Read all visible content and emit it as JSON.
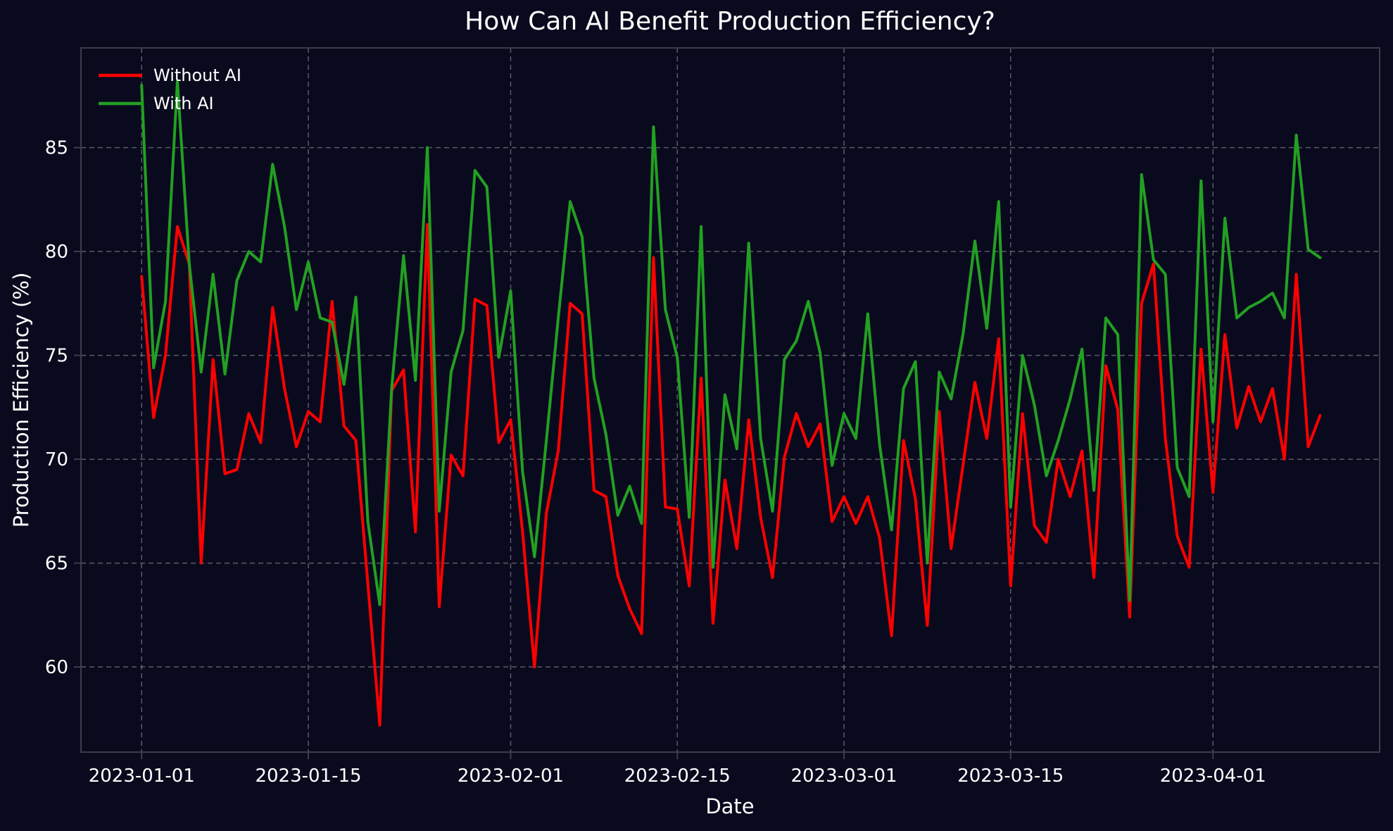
{
  "chart_data": {
    "type": "line",
    "title": "How Can AI Benefit Production Efficiency?",
    "xlabel": "Date",
    "ylabel": "Production Efficiency (%)",
    "background_color": "#0a0a1e",
    "text_color": "#ffffff",
    "grid": true,
    "grid_color": "#8f8f98",
    "spine_color": "#3d3d48",
    "legend_position": "upper-left",
    "x_start": "2023-01-01",
    "x_step": "1 day",
    "n_points": 100,
    "xlim_days": [
      -5.1,
      104.0
    ],
    "ylim": [
      55.9,
      89.8
    ],
    "yticks": [
      60,
      65,
      70,
      75,
      80,
      85
    ],
    "xticks": [
      {
        "day": 0,
        "label": "2023-01-01"
      },
      {
        "day": 14,
        "label": "2023-01-15"
      },
      {
        "day": 31,
        "label": "2023-02-01"
      },
      {
        "day": 45,
        "label": "2023-02-15"
      },
      {
        "day": 59,
        "label": "2023-03-01"
      },
      {
        "day": 73,
        "label": "2023-03-15"
      },
      {
        "day": 90,
        "label": "2023-04-01"
      }
    ],
    "series": [
      {
        "name": "Without AI",
        "color": "#ff0000",
        "values": [
          78.8,
          72.0,
          75.0,
          81.2,
          79.4,
          65.0,
          74.8,
          69.3,
          69.5,
          72.2,
          70.8,
          77.3,
          73.4,
          70.6,
          72.3,
          71.8,
          77.6,
          71.6,
          70.9,
          64.0,
          57.2,
          73.3,
          74.3,
          66.5,
          81.3,
          62.9,
          70.2,
          69.2,
          77.7,
          77.4,
          70.8,
          71.9,
          66.5,
          60.0,
          67.4,
          70.4,
          77.5,
          77.0,
          68.5,
          68.2,
          64.4,
          62.8,
          61.6,
          79.7,
          67.7,
          67.6,
          63.9,
          73.9,
          62.1,
          69.0,
          65.7,
          71.9,
          67.2,
          64.3,
          70.1,
          72.2,
          70.6,
          71.7,
          67.0,
          68.2,
          66.9,
          68.2,
          66.2,
          61.5,
          70.9,
          68.1,
          62.0,
          72.3,
          65.7,
          69.7,
          73.7,
          71.0,
          75.8,
          63.9,
          72.2,
          66.8,
          66.0,
          70.0,
          68.2,
          70.4,
          64.3,
          74.5,
          72.4,
          62.4,
          77.5,
          79.4,
          71.0,
          66.3,
          64.8,
          75.3,
          68.4,
          76.0,
          71.5,
          73.5,
          71.8,
          73.4,
          70.0,
          78.9,
          70.6,
          72.1
        ]
      },
      {
        "name": "With AI",
        "color": "#22a022",
        "values": [
          88.0,
          74.4,
          77.6,
          88.2,
          79.4,
          74.2,
          78.9,
          74.1,
          78.6,
          80.0,
          79.5,
          84.2,
          81.2,
          77.2,
          79.5,
          76.8,
          76.6,
          73.6,
          77.8,
          67.0,
          63.0,
          73.4,
          79.8,
          73.8,
          85.0,
          67.5,
          74.2,
          76.2,
          83.9,
          83.1,
          74.9,
          78.1,
          69.4,
          65.3,
          70.9,
          76.8,
          82.4,
          80.7,
          73.9,
          71.2,
          67.3,
          68.7,
          66.9,
          86.0,
          77.2,
          74.9,
          67.2,
          81.2,
          64.8,
          73.1,
          70.5,
          80.4,
          71.0,
          67.5,
          74.8,
          75.7,
          77.6,
          75.1,
          69.7,
          72.2,
          71.0,
          77.0,
          70.7,
          66.6,
          73.4,
          74.7,
          65.0,
          74.2,
          72.9,
          76.0,
          80.5,
          76.3,
          82.4,
          67.7,
          75.0,
          72.6,
          69.2,
          70.9,
          72.9,
          75.3,
          68.5,
          76.8,
          76.0,
          63.2,
          83.7,
          79.6,
          78.9,
          69.6,
          68.2,
          83.4,
          71.8,
          81.6,
          76.8,
          77.3,
          77.6,
          78.0,
          76.8,
          85.6,
          80.1,
          79.7
        ]
      }
    ]
  }
}
